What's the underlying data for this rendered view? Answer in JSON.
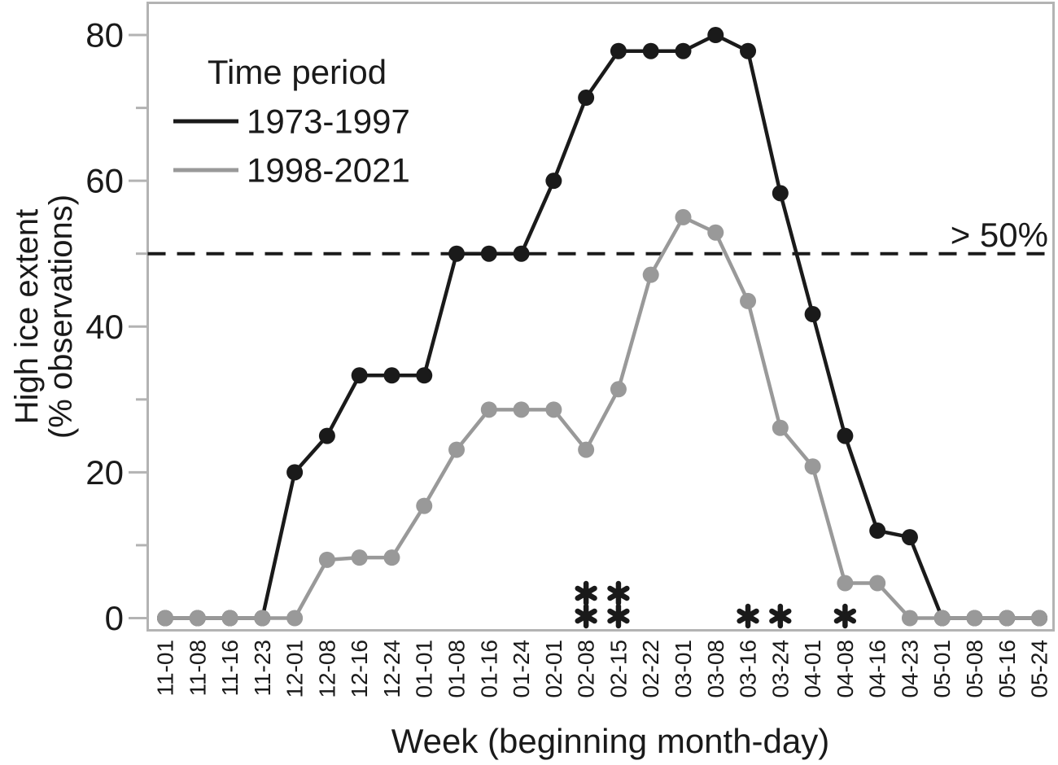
{
  "chart_data": {
    "type": "line",
    "title": "",
    "xlabel": "Week (beginning month-day)",
    "ylabel_line1": "High ice extent",
    "ylabel_line2": "(% observations)",
    "categories": [
      "11-01",
      "11-08",
      "11-16",
      "11-23",
      "12-01",
      "12-08",
      "12-16",
      "12-24",
      "01-01",
      "01-08",
      "01-16",
      "01-24",
      "02-01",
      "02-08",
      "02-15",
      "02-22",
      "03-01",
      "03-08",
      "03-16",
      "03-24",
      "04-01",
      "04-08",
      "04-16",
      "04-23",
      "05-01",
      "05-08",
      "05-16",
      "05-24"
    ],
    "series": [
      {
        "name": "1973-1997",
        "color": "#1a1a1a",
        "values": [
          0,
          0,
          0,
          0,
          20,
          25,
          33.3,
          33.3,
          33.3,
          50,
          50,
          50,
          60,
          71.4,
          77.8,
          77.8,
          77.8,
          80,
          77.8,
          58.3,
          41.7,
          25,
          12,
          11.1,
          0,
          0,
          0,
          0
        ]
      },
      {
        "name": "1998-2021",
        "color": "#999999",
        "values": [
          0,
          0,
          0,
          0,
          0,
          8,
          8.3,
          8.3,
          15.4,
          23.1,
          28.6,
          28.6,
          28.6,
          23.1,
          31.4,
          47.1,
          55,
          52.9,
          43.5,
          26.1,
          20.8,
          4.8,
          4.8,
          0,
          0,
          0,
          0,
          0
        ]
      }
    ],
    "legend": {
      "title": "Time period",
      "position": "top-left"
    },
    "y_ticks": [
      0,
      20,
      40,
      60,
      80
    ],
    "y_minor_ticks": [
      10,
      30,
      50,
      70
    ],
    "ylim": [
      0,
      84
    ],
    "grid": false,
    "threshold": {
      "value": 50,
      "label": "> 50%",
      "style": "dashed"
    },
    "significance": [
      {
        "category": "02-08",
        "asterisks": 2
      },
      {
        "category": "02-15",
        "asterisks": 2
      },
      {
        "category": "03-16",
        "asterisks": 1
      },
      {
        "category": "03-24",
        "asterisks": 1
      },
      {
        "category": "04-08",
        "asterisks": 1
      }
    ]
  },
  "colors": {
    "frame": "#b3b3b3",
    "ink": "#1a1a1a"
  }
}
